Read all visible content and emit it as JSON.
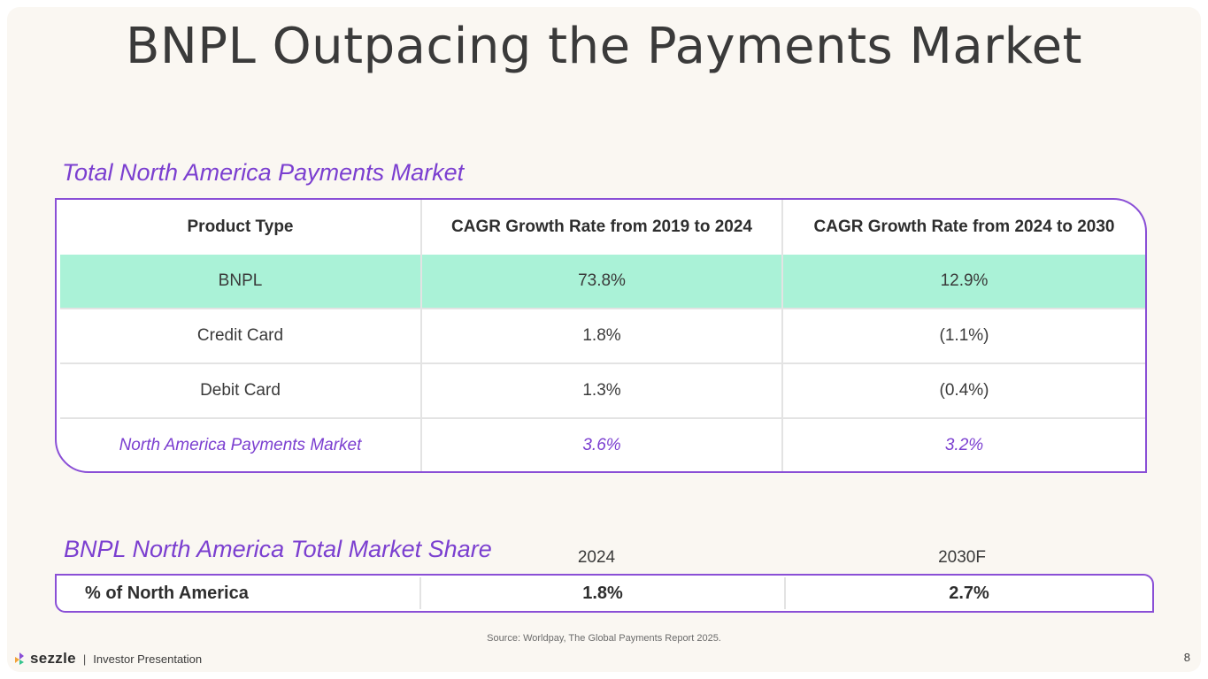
{
  "title": "BNPL Outpacing the Payments Market",
  "section1": {
    "heading": "Total North America Payments Market",
    "columns": [
      "Product Type",
      "CAGR Growth Rate from 2019 to 2024",
      "CAGR Growth Rate from 2024 to 2030"
    ],
    "rows": [
      {
        "product": "BNPL",
        "cagr_2019_2024": "73.8%",
        "cagr_2024_2030": "12.9%"
      },
      {
        "product": "Credit Card",
        "cagr_2019_2024": "1.8%",
        "cagr_2024_2030": "(1.1%)"
      },
      {
        "product": "Debit Card",
        "cagr_2019_2024": "1.3%",
        "cagr_2024_2030": "(0.4%)"
      },
      {
        "product": "North America Payments Market",
        "cagr_2019_2024": "3.6%",
        "cagr_2024_2030": "3.2%"
      }
    ]
  },
  "section2": {
    "heading": "BNPL North America Total Market Share",
    "years": [
      "2024",
      "2030F"
    ],
    "row_label": "% of North America",
    "values": [
      "1.8%",
      "2.7%"
    ]
  },
  "source": "Source: Worldpay, The Global Payments Report 2025.",
  "footer": {
    "brand": "sezzle",
    "separator": "|",
    "label": "Investor Presentation",
    "page_number": "8"
  },
  "colors": {
    "accent_purple": "#7b3fd0",
    "highlight_mint": "#aaf2d7",
    "background": "#faf7f2"
  }
}
